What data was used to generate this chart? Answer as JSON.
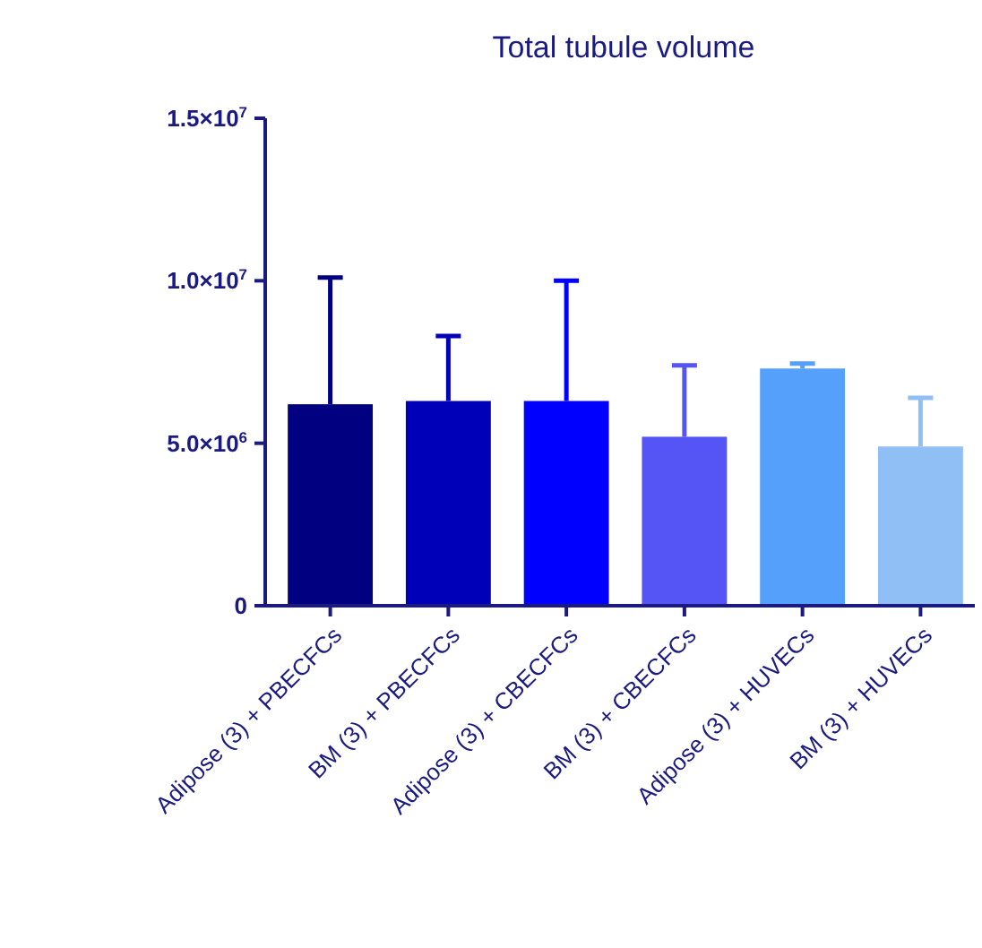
{
  "chart_data": {
    "type": "bar",
    "title": "Total tubule volume",
    "categories": [
      "Adipose (3) + PBECFCs",
      "BM (3) + PBECFCs",
      "Adipose (3) + CBECFCs",
      "BM (3) + CBECFCs",
      "Adipose (3) + HUVECs",
      "BM (3) + HUVECs"
    ],
    "values": [
      6200000,
      6300000,
      6300000,
      5200000,
      7300000,
      4900000
    ],
    "errors": [
      [
        6200000,
        10100000
      ],
      [
        6300000,
        8300000
      ],
      [
        6300000,
        10000000
      ],
      [
        5200000,
        7400000
      ],
      [
        7300000,
        7450000
      ],
      [
        4900000,
        6400000
      ]
    ],
    "colors": [
      "#000080",
      "#0000b8",
      "#0000ff",
      "#5555f5",
      "#55a0fa",
      "#90bff5"
    ],
    "ylim": [
      0,
      15000000
    ],
    "yticks": [
      0,
      {
        "value": 5000000,
        "label": "5.0×10$^{6}$"
      },
      {
        "value": 10000000,
        "label": "1.0×10$^{7}$"
      },
      {
        "value": 15000000,
        "label": "1.5×10$^{7}$"
      }
    ],
    "grid": false
  }
}
